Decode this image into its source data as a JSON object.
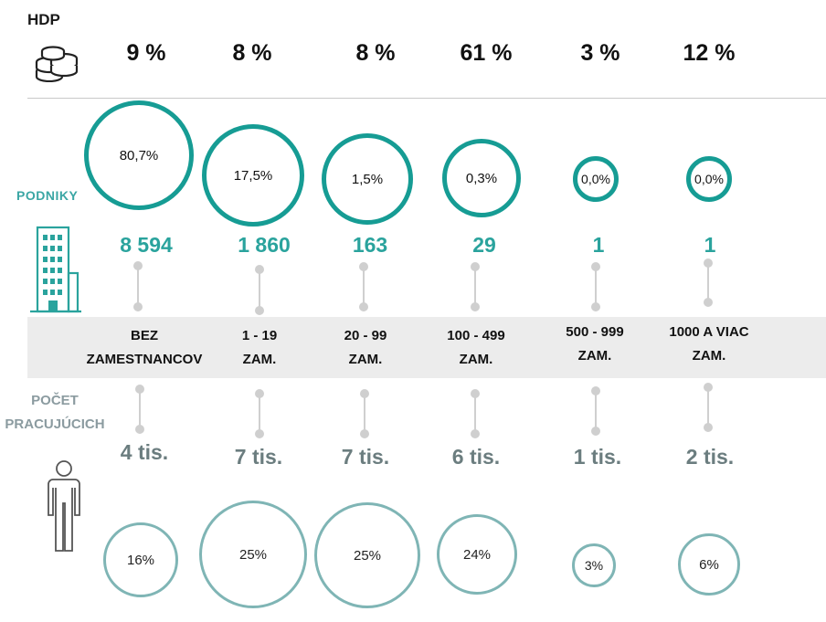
{
  "header": {
    "hdp_label": "HDP"
  },
  "companies_label": "PODNIKY",
  "employees_label": "POČET PRACUJÚCICH",
  "colors": {
    "teal": "#169c94",
    "count_teal": "#2aa39d",
    "grey_text": "#6b7d7f",
    "band": "#ececec",
    "bottom_circle": "#7fb5b5"
  },
  "icons": {
    "hdp": "coins-stack-icon",
    "companies": "office-building-icon",
    "employees": "person-icon"
  },
  "categories": [
    {
      "gdp": "9 %",
      "company_share": "80,7%",
      "company_count": "8 594",
      "size_line1": "BEZ",
      "size_line2": "ZAMESTNANCOV",
      "employees": "4 tis.",
      "employee_share": "16%"
    },
    {
      "gdp": "8 %",
      "company_share": "17,5%",
      "company_count": "1 860",
      "size_line1": "1 - 19",
      "size_line2": "ZAM.",
      "employees": "7 tis.",
      "employee_share": "25%"
    },
    {
      "gdp": "8 %",
      "company_share": "1,5%",
      "company_count": "163",
      "size_line1": "20 - 99",
      "size_line2": "ZAM.",
      "employees": "7 tis.",
      "employee_share": "25%"
    },
    {
      "gdp": "61 %",
      "company_share": "0,3%",
      "company_count": "29",
      "size_line1": "100 - 499",
      "size_line2": "ZAM.",
      "employees": "6 tis.",
      "employee_share": "24%"
    },
    {
      "gdp": "3 %",
      "company_share": "0,0%",
      "company_count": "1",
      "size_line1": "500 - 999",
      "size_line2": "ZAM.",
      "employees": "1 tis.",
      "employee_share": "3%"
    },
    {
      "gdp": "12 %",
      "company_share": "0,0%",
      "company_count": "1",
      "size_line1": "1000 A VIAC",
      "size_line2": "ZAM.",
      "employees": "2 tis.",
      "employee_share": "6%"
    }
  ]
}
